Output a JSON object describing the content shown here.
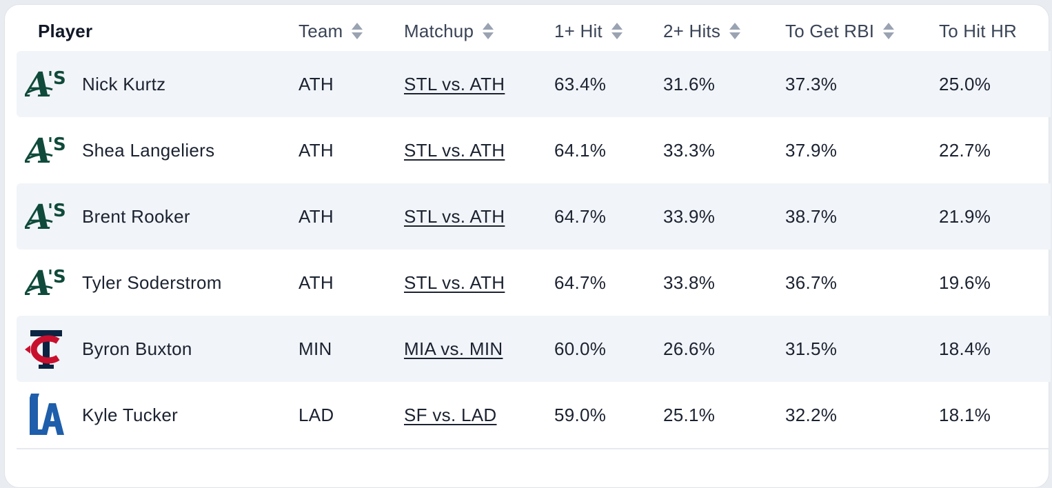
{
  "table": {
    "headers": {
      "player": "Player",
      "team": "Team",
      "matchup": "Matchup",
      "hit1": "1+ Hit",
      "hit2": "2+ Hits",
      "rbi": "To Get RBI",
      "hr": "To Hit HR"
    },
    "rows": [
      {
        "logo": "athletics-logo",
        "player": "Nick Kurtz",
        "team": "ATH",
        "matchup": "STL vs. ATH",
        "hit1": "63.4%",
        "hit2": "31.6%",
        "rbi": "37.3%",
        "hr": "25.0%"
      },
      {
        "logo": "athletics-logo",
        "player": "Shea Langeliers",
        "team": "ATH",
        "matchup": "STL vs. ATH",
        "hit1": "64.1%",
        "hit2": "33.3%",
        "rbi": "37.9%",
        "hr": "22.7%"
      },
      {
        "logo": "athletics-logo",
        "player": "Brent Rooker",
        "team": "ATH",
        "matchup": "STL vs. ATH",
        "hit1": "64.7%",
        "hit2": "33.9%",
        "rbi": "38.7%",
        "hr": "21.9%"
      },
      {
        "logo": "athletics-logo",
        "player": "Tyler Soderstrom",
        "team": "ATH",
        "matchup": "STL vs. ATH",
        "hit1": "64.7%",
        "hit2": "33.8%",
        "rbi": "36.7%",
        "hr": "19.6%"
      },
      {
        "logo": "twins-logo",
        "player": "Byron Buxton",
        "team": "MIN",
        "matchup": "MIA vs. MIN",
        "hit1": "60.0%",
        "hit2": "26.6%",
        "rbi": "31.5%",
        "hr": "18.4%"
      },
      {
        "logo": "dodgers-logo",
        "player": "Kyle Tucker",
        "team": "LAD",
        "matchup": "SF vs. LAD",
        "hit1": "59.0%",
        "hit2": "25.1%",
        "rbi": "32.2%",
        "hr": "18.1%"
      }
    ]
  },
  "colors": {
    "athletics_green": "#0f4a3a",
    "twins_navy": "#0c2341",
    "twins_red": "#c8102e",
    "dodgers_blue": "#1e5eab",
    "row_shade": "#f1f4f8",
    "sort_arrow": "#9aa3b2"
  }
}
